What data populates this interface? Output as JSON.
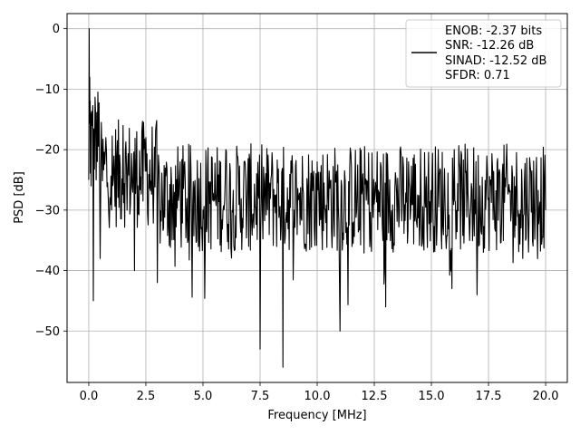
{
  "chart_data": {
    "type": "line",
    "title": "",
    "xlabel": "Frequency [MHz]",
    "ylabel": "PSD [dB]",
    "xlim": [
      -0.95,
      20.95
    ],
    "ylim": [
      -58.5,
      2.5
    ],
    "xticks": [
      0.0,
      2.5,
      5.0,
      7.5,
      10.0,
      12.5,
      15.0,
      17.5,
      20.0
    ],
    "xtick_labels": [
      "0.0",
      "2.5",
      "5.0",
      "7.5",
      "10.0",
      "12.5",
      "15.0",
      "17.5",
      "20.0"
    ],
    "yticks": [
      0,
      -10,
      -20,
      -30,
      -40,
      -50
    ],
    "ytick_labels": [
      "0",
      "−10",
      "−20",
      "−30",
      "−40",
      "−50"
    ],
    "grid": true,
    "legend": {
      "placement": "top-right",
      "entries": [
        "ENOB: -2.37 bits",
        "SNR: -12.26 dB",
        "SINAD: -12.52 dB",
        "SFDR: 0.71"
      ]
    },
    "series": [
      {
        "color": "#000000",
        "x": [
          0.0,
          0.02,
          0.04,
          0.06,
          0.08,
          0.1,
          0.15,
          0.2,
          0.3,
          0.5,
          0.75,
          1.0,
          1.5,
          2.0,
          2.5,
          3.0,
          4.0,
          5.0,
          6.0,
          7.0,
          7.5,
          8.0,
          8.5,
          9.0,
          10.0,
          11.0,
          12.0,
          12.5,
          13.0,
          14.0,
          15.0,
          16.0,
          17.0,
          17.5,
          18.0,
          19.0,
          20.0
        ],
        "y": [
          -25,
          0,
          -8,
          -12,
          -14,
          -26,
          -16,
          -45,
          -14,
          -38,
          -18,
          -30,
          -16,
          -40,
          -18,
          -42,
          -22,
          -30,
          -20,
          -36,
          -53,
          -24,
          -56,
          -30,
          -22,
          -50,
          -24,
          -29,
          -46,
          -22,
          -32,
          -20,
          -44,
          -28,
          -24,
          -38,
          -30
        ]
      }
    ]
  }
}
